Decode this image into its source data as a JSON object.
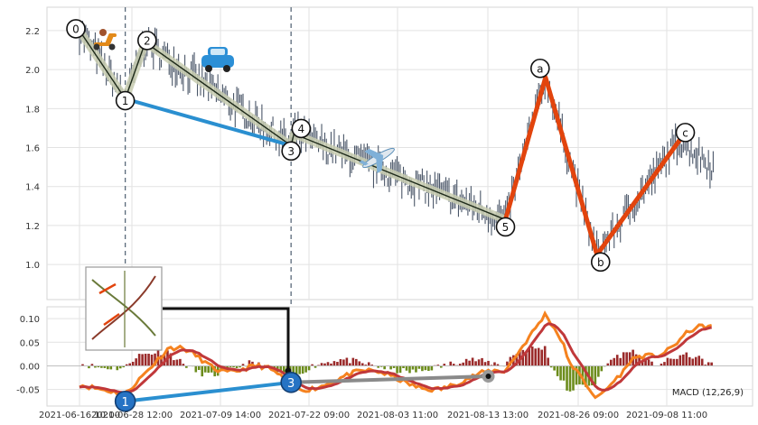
{
  "chart_data": [
    {
      "type": "line",
      "panel": "price",
      "title": "",
      "xlabel": "",
      "ylabel": "",
      "ylim": [
        0.82,
        2.32
      ],
      "grid": true,
      "y_ticks": [
        "1.0",
        "1.2",
        "1.4",
        "1.6",
        "1.8",
        "2.0",
        "2.2"
      ],
      "x_ticks": [
        "2021-06-16 10:00",
        "2021-06-28 12:00",
        "2021-07-09 14:00",
        "2021-07-22 09:00",
        "2021-08-03 11:00",
        "2021-08-13 13:00",
        "2021-08-26 09:00",
        "2021-09-08 11:00"
      ],
      "wave_points": [
        {
          "label": "0",
          "x": 0.0,
          "y": 2.2
        },
        {
          "label": "1",
          "x": 1.6,
          "y": 1.85
        },
        {
          "label": "2",
          "x": 2.3,
          "y": 2.14
        },
        {
          "label": "3",
          "x": 7.4,
          "y": 1.61
        },
        {
          "label": "4",
          "x": 7.5,
          "y": 1.67
        },
        {
          "label": "5",
          "x": 14.9,
          "y": 1.23
        },
        {
          "label": "a",
          "x": 16.3,
          "y": 1.96
        },
        {
          "label": "b",
          "x": 18.1,
          "y": 1.05
        },
        {
          "label": "c",
          "x": 21.0,
          "y": 1.64
        }
      ],
      "markers": [
        "scooter-icon",
        "car-icon",
        "airplane-icon"
      ],
      "colors": {
        "price": "#4a5668",
        "impulse": "#6b6b3a",
        "impulse_fill": "#c8ccb0",
        "corrective": "#e2440d",
        "trend": "#2a8fd0"
      }
    },
    {
      "type": "bar",
      "panel": "macd",
      "label": "MACD (12,26,9)",
      "ylim": [
        -0.085,
        0.125
      ],
      "y_ticks": [
        "0.10",
        "0.05",
        "0.00",
        "-0.05"
      ],
      "wave_points": [
        {
          "label": "1",
          "x": 1.6,
          "y": -0.075
        },
        {
          "label": "3",
          "x": 7.4,
          "y": -0.035
        }
      ],
      "colors": {
        "macd": "#f5821f",
        "signal": "#c0383a",
        "hist_pos": "#9a2a2a",
        "hist_neg": "#6c8c1c"
      }
    }
  ]
}
